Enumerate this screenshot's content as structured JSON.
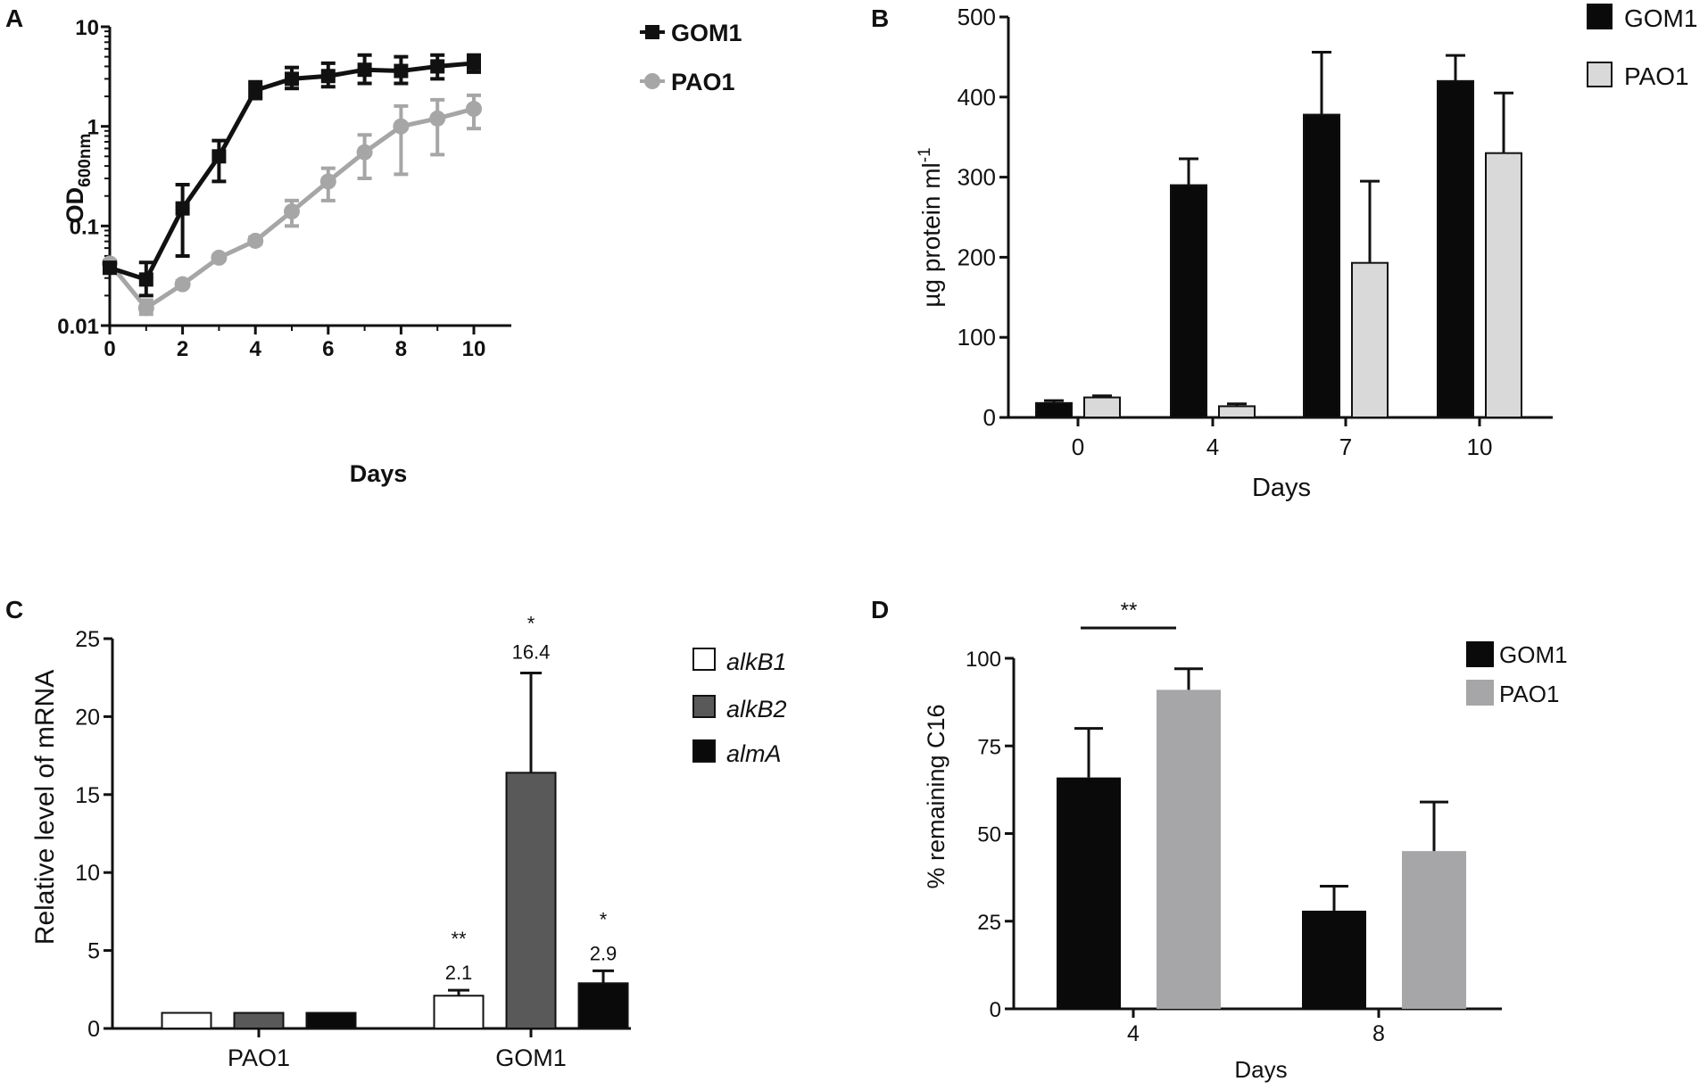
{
  "chart_data": [
    {
      "panel": "A",
      "type": "line",
      "xlabel": "Days",
      "ylabel_main": "OD",
      "ylabel_sub": "600nm",
      "yscale": "log",
      "ylim": [
        0.01,
        10
      ],
      "xlim": [
        0,
        10.5
      ],
      "xticks": [
        0,
        2,
        4,
        6,
        8,
        10
      ],
      "xtick_labels": [
        "0",
        "2",
        "4",
        "6",
        "8",
        "10"
      ],
      "yticks": [
        0.01,
        0.1,
        1,
        10
      ],
      "ytick_labels": [
        "0.01",
        "0.1",
        "1",
        "10"
      ],
      "legend_position": "top-right",
      "series": [
        {
          "name": "GOM1",
          "color": "#111111",
          "marker": "square",
          "x": [
            0,
            1,
            2,
            3,
            4,
            5,
            6,
            7,
            8,
            9,
            10
          ],
          "y": [
            0.038,
            0.029,
            0.15,
            0.5,
            2.3,
            3.0,
            3.2,
            3.7,
            3.6,
            4.0,
            4.3
          ],
          "err_low": [
            0.034,
            0.02,
            0.05,
            0.28,
            1.9,
            2.4,
            2.5,
            2.7,
            2.7,
            3.0,
            3.5
          ],
          "err_high": [
            0.043,
            0.043,
            0.26,
            0.72,
            2.8,
            3.9,
            4.3,
            5.2,
            5.0,
            5.2,
            5.2
          ]
        },
        {
          "name": "PAO1",
          "color": "#a6a6a6",
          "marker": "circle",
          "x": [
            0,
            1,
            2,
            3,
            4,
            5,
            6,
            7,
            8,
            9,
            10
          ],
          "y": [
            0.042,
            0.015,
            0.026,
            0.048,
            0.071,
            0.14,
            0.28,
            0.55,
            1.0,
            1.2,
            1.5
          ],
          "err_low": [
            0.038,
            0.013,
            0.025,
            0.046,
            0.066,
            0.1,
            0.18,
            0.3,
            0.33,
            0.52,
            0.95
          ],
          "err_high": [
            0.045,
            0.018,
            0.028,
            0.051,
            0.077,
            0.18,
            0.38,
            0.82,
            1.6,
            1.85,
            2.05
          ]
        }
      ]
    },
    {
      "panel": "B",
      "type": "bar",
      "xlabel": "Days",
      "ylabel": "µg protein ml",
      "ylabel_sup": "-1",
      "ylim": [
        0,
        500
      ],
      "yticks": [
        0,
        100,
        200,
        300,
        400,
        500
      ],
      "ytick_labels": [
        "0",
        "100",
        "200",
        "300",
        "400",
        "500"
      ],
      "categories": [
        "0",
        "4",
        "7",
        "10"
      ],
      "legend_position": "top-right",
      "series": [
        {
          "name": "GOM1",
          "color": "#0a0a0a",
          "values": [
            18,
            290,
            378,
            420
          ],
          "errors": [
            3,
            33,
            78,
            32
          ]
        },
        {
          "name": "PAO1",
          "color": "#d9d9d9",
          "values": [
            25,
            14,
            193,
            330
          ],
          "errors": [
            2,
            3,
            102,
            75
          ]
        }
      ]
    },
    {
      "panel": "C",
      "type": "bar",
      "xlabel": "",
      "ylabel": "Relative level of mRNA",
      "ylim": [
        0,
        25
      ],
      "yticks": [
        0,
        5,
        10,
        15,
        20,
        25
      ],
      "ytick_labels": [
        "0",
        "5",
        "10",
        "15",
        "20",
        "25"
      ],
      "categories": [
        "PAO1",
        "GOM1"
      ],
      "legend_position": "top-right",
      "series": [
        {
          "name": "alkB1",
          "color": "#ffffff",
          "values": [
            1,
            2.1
          ],
          "errors": [
            0,
            0.35
          ]
        },
        {
          "name": "alkB2",
          "color": "#595959",
          "values": [
            1,
            16.4
          ],
          "errors": [
            0,
            6.4
          ]
        },
        {
          "name": "almA",
          "color": "#0a0a0a",
          "values": [
            1,
            2.9
          ],
          "errors": [
            0,
            0.8
          ]
        }
      ],
      "annotations": [
        {
          "series": "alkB1",
          "category": "GOM1",
          "stars": "**",
          "label": "2.1"
        },
        {
          "series": "alkB2",
          "category": "GOM1",
          "stars": "*",
          "label": "16.4"
        },
        {
          "series": "almA",
          "category": "GOM1",
          "stars": "*",
          "label": "2.9"
        }
      ]
    },
    {
      "panel": "D",
      "type": "bar",
      "xlabel": "Days",
      "ylabel": "% remaining C16",
      "ylim": [
        0,
        100
      ],
      "yticks": [
        0,
        25,
        50,
        75,
        100
      ],
      "ytick_labels": [
        "0",
        "25",
        "50",
        "75",
        "100"
      ],
      "categories": [
        "4",
        "8"
      ],
      "legend_position": "top-right",
      "series": [
        {
          "name": "GOM1",
          "color": "#0a0a0a",
          "values": [
            66,
            28
          ],
          "errors": [
            14,
            7
          ]
        },
        {
          "name": "PAO1",
          "color": "#a6a6a8",
          "values": [
            91,
            45
          ],
          "errors": [
            6,
            14
          ]
        }
      ],
      "significance": {
        "category": "4",
        "label": "**"
      }
    }
  ]
}
